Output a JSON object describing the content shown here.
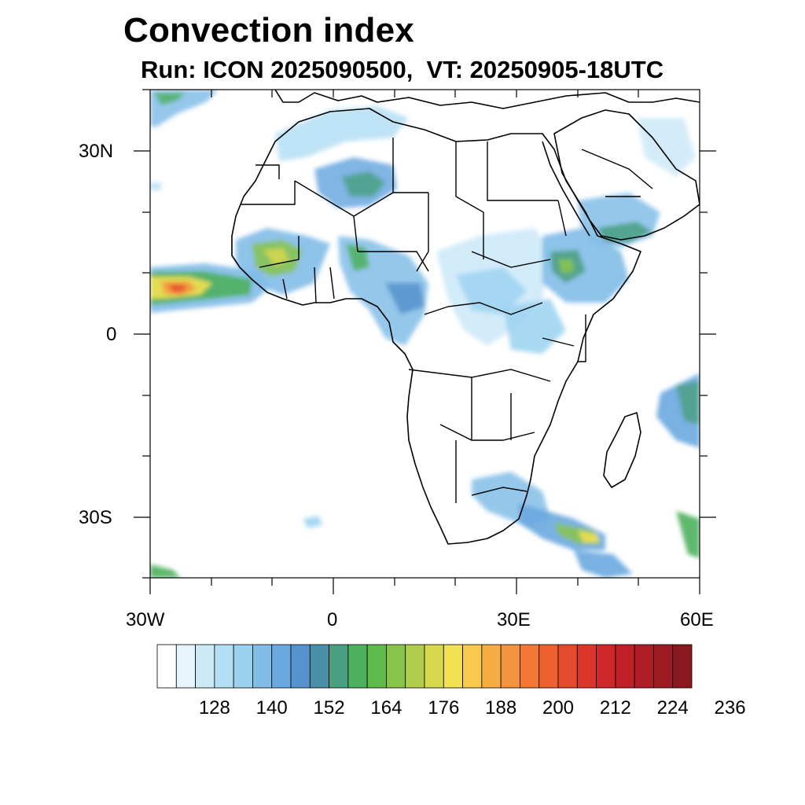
{
  "title": "Convection index",
  "subtitle": "Run: ICON 2025090500,  VT: 20250905-18UTC",
  "axes": {
    "x_ticks": [
      "30W",
      "0",
      "30E",
      "60E"
    ],
    "y_ticks": [
      "30N",
      "0",
      "30S"
    ]
  },
  "colorbar": {
    "labels": [
      "128",
      "140",
      "152",
      "164",
      "176",
      "188",
      "200",
      "212",
      "224",
      "236"
    ],
    "colors": [
      "#ffffff",
      "#e6f4fc",
      "#cde9f8",
      "#b4def4",
      "#9ad2f0",
      "#82bde8",
      "#6aa8df",
      "#5693cc",
      "#4a8fa8",
      "#4a9f80",
      "#4db05c",
      "#60bb4d",
      "#88c44c",
      "#b0ce4c",
      "#d8d84d",
      "#f2e150",
      "#f8c94c",
      "#f6ae44",
      "#f4933d",
      "#f27836",
      "#ee6030",
      "#e64a2d",
      "#dc352b",
      "#ce2629",
      "#bf1f27",
      "#ae1c25",
      "#9c1a22",
      "#8a181f"
    ]
  },
  "colors": {
    "coast": "#000000",
    "frame": "#000000"
  }
}
